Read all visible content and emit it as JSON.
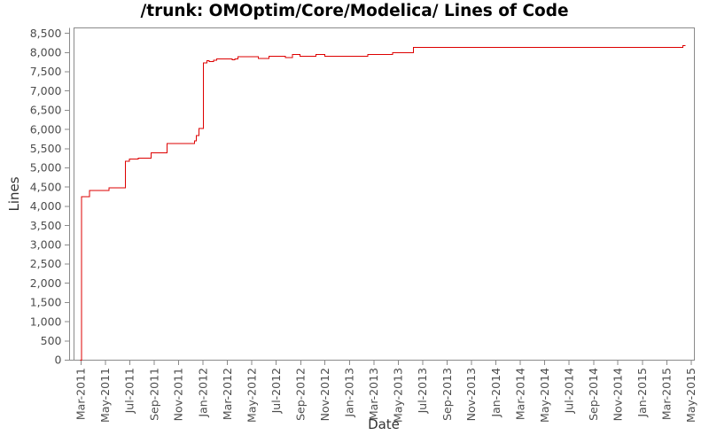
{
  "page": {
    "background": "#ffffff"
  },
  "chart_data": {
    "type": "line",
    "step_style": "post",
    "title": "/trunk: OMOptim/Core/Modelica/ Lines of Code",
    "xlabel": "Date",
    "ylabel": "Lines",
    "grid": false,
    "legend": "none",
    "line_color": "#dd0000",
    "axis_color": "#8a8a8a",
    "tick_label_color": "#4d4d4d",
    "x_range": [
      2011.119,
      2015.355
    ],
    "y_axis": {
      "min": 0,
      "max": 8500,
      "step": 500,
      "axis_top": 8640
    },
    "x_ticks": [
      {
        "label": "Mar-2011",
        "x": 2011.167
      },
      {
        "label": "May-2011",
        "x": 2011.333
      },
      {
        "label": "Jul-2011",
        "x": 2011.5
      },
      {
        "label": "Sep-2011",
        "x": 2011.667
      },
      {
        "label": "Nov-2011",
        "x": 2011.833
      },
      {
        "label": "Jan-2012",
        "x": 2012.0
      },
      {
        "label": "Mar-2012",
        "x": 2012.167
      },
      {
        "label": "May-2012",
        "x": 2012.333
      },
      {
        "label": "Jul-2012",
        "x": 2012.5
      },
      {
        "label": "Sep-2012",
        "x": 2012.667
      },
      {
        "label": "Nov-2012",
        "x": 2012.833
      },
      {
        "label": "Jan-2013",
        "x": 2013.0
      },
      {
        "label": "Mar-2013",
        "x": 2013.167
      },
      {
        "label": "May-2013",
        "x": 2013.333
      },
      {
        "label": "Jul-2013",
        "x": 2013.5
      },
      {
        "label": "Sep-2013",
        "x": 2013.667
      },
      {
        "label": "Nov-2013",
        "x": 2013.833
      },
      {
        "label": "Jan-2014",
        "x": 2014.0
      },
      {
        "label": "Mar-2014",
        "x": 2014.167
      },
      {
        "label": "May-2014",
        "x": 2014.333
      },
      {
        "label": "Jul-2014",
        "x": 2014.5
      },
      {
        "label": "Sep-2014",
        "x": 2014.667
      },
      {
        "label": "Nov-2014",
        "x": 2014.833
      },
      {
        "label": "Jan-2015",
        "x": 2015.0
      },
      {
        "label": "Mar-2015",
        "x": 2015.167
      },
      {
        "label": "May-2015",
        "x": 2015.333
      }
    ],
    "series": [
      {
        "name": "Lines of Code",
        "start": [
          2011.16,
          0
        ],
        "end_x": 2015.294,
        "steps": [
          [
            2011.169,
            4250
          ],
          [
            2011.224,
            4410
          ],
          [
            2011.359,
            4480
          ],
          [
            2011.471,
            5175
          ],
          [
            2011.497,
            5230
          ],
          [
            2011.558,
            5255
          ],
          [
            2011.644,
            5390
          ],
          [
            2011.755,
            5635
          ],
          [
            2011.942,
            5700
          ],
          [
            2011.955,
            5840
          ],
          [
            2011.971,
            6030
          ],
          [
            2012.003,
            7730
          ],
          [
            2012.027,
            7790
          ],
          [
            2012.041,
            7765
          ],
          [
            2012.073,
            7800
          ],
          [
            2012.093,
            7835
          ],
          [
            2012.198,
            7805
          ],
          [
            2012.218,
            7835
          ],
          [
            2012.238,
            7895
          ],
          [
            2012.379,
            7850
          ],
          [
            2012.449,
            7900
          ],
          [
            2012.561,
            7870
          ],
          [
            2012.611,
            7945
          ],
          [
            2012.661,
            7900
          ],
          [
            2012.772,
            7945
          ],
          [
            2012.833,
            7900
          ],
          [
            2013.125,
            7945
          ],
          [
            2013.296,
            7990
          ],
          [
            2013.437,
            8130
          ],
          [
            2015.276,
            8175
          ]
        ]
      }
    ]
  }
}
